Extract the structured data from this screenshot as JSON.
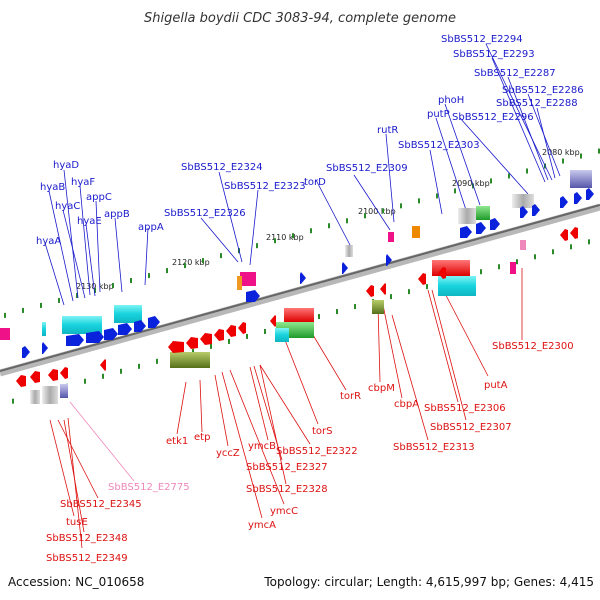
{
  "title": "Shigella boydii CDC 3083-94, complete genome",
  "accession": "Accession: NC_010658",
  "topology": "Topology: circular; Length: 4,615,997 bp; Genes: 4,415",
  "colors": {
    "forward_label": "#1a1acc",
    "reverse_label": "#dd1111",
    "pink_label": "#ee88bb",
    "axis": "#999999",
    "tick": "#2a8a2a",
    "blue_gene": "#0b22dd",
    "red_gene": "#ee0000",
    "cyan": "#22dddd",
    "green": "#22bb33",
    "olive": "#6f8a1e",
    "magenta": "#ee1188"
  },
  "scale_ticks": [
    "2080 kbp",
    "2090 kbp",
    "2100 kbp",
    "2110 kbp",
    "2120 kbp",
    "2130 kbp"
  ],
  "forward_labels": [
    "SbBS512_E2294",
    "SbBS512_E2293",
    "SbBS512_E2287",
    "SbBS512_E2286",
    "SbBS512_E2288",
    "SbBS512_E2296",
    "phoH",
    "putP",
    "rutR",
    "SbBS512_E2303",
    "SbBS512_E2309",
    "torD",
    "SbBS512_E2324",
    "SbBS512_E2323",
    "SbBS512_E2326",
    "hyaD",
    "hyaF",
    "hyaB",
    "appC",
    "hyaC",
    "hyaE",
    "appB",
    "appA",
    "hyaA"
  ],
  "reverse_labels": [
    "SbBS512_E2300",
    "putA",
    "SbBS512_E2306",
    "SbBS512_E2307",
    "cbpA",
    "cbpM",
    "SbBS512_E2313",
    "torR",
    "torS",
    "SbBS512_E2322",
    "ymcB",
    "SbBS512_E2327",
    "SbBS512_E2328",
    "yccZ",
    "etp",
    "etk1",
    "ymcC",
    "ymcA",
    "SbBS512_E2345",
    "tusE",
    "SbBS512_E2348",
    "SbBS512_E2349"
  ],
  "pink_labels": [
    "SbBS512_E2775"
  ]
}
